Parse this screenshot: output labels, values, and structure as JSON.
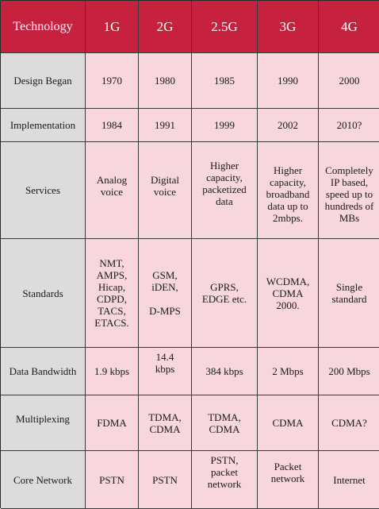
{
  "header": [
    "Technology",
    "1G",
    "2G",
    "2.5G",
    "3G",
    "4G"
  ],
  "rows": [
    {
      "label": "Design Began",
      "cells": [
        "1970",
        "1980",
        "1985",
        "1990",
        "2000"
      ]
    },
    {
      "label": "Implementation",
      "cells": [
        "1984",
        "1991",
        "1999",
        "2002",
        "2010?"
      ]
    },
    {
      "label": "Services",
      "cells": [
        "Analog\nvoice",
        "Digital\nvoice",
        "Higher\ncapacity,\npacketized\ndata",
        "Higher\ncapacity,\nbroadband\ndata up to\n2mbps.",
        "Completely\nIP based,\nspeed up to\nhundreds of\nMBs"
      ]
    },
    {
      "label": "Standards",
      "cells": [
        "NMT,\nAMPS,\nHicap,\nCDPD,\nTACS,\nETACS.",
        "GSM,\niDEN,\n\nD-MPS",
        "GPRS,\nEDGE etc.",
        "WCDMA,\nCDMA\n2000.",
        "Single\nstandard"
      ]
    },
    {
      "label": "Data Bandwidth",
      "cells": [
        "1.9 kbps",
        "14.4\nkbps",
        "384 kbps",
        "2 Mbps",
        "200 Mbps"
      ]
    },
    {
      "label": "Multiplexing",
      "cells": [
        "FDMA",
        "TDMA,\nCDMA",
        "TDMA,\nCDMA",
        "CDMA",
        "CDMA?"
      ]
    },
    {
      "label": "Core Network",
      "cells": [
        "PSTN",
        "PSTN",
        "PSTN,\npacket\nnetwork",
        "Packet\nnetwork",
        "Internet"
      ]
    }
  ]
}
